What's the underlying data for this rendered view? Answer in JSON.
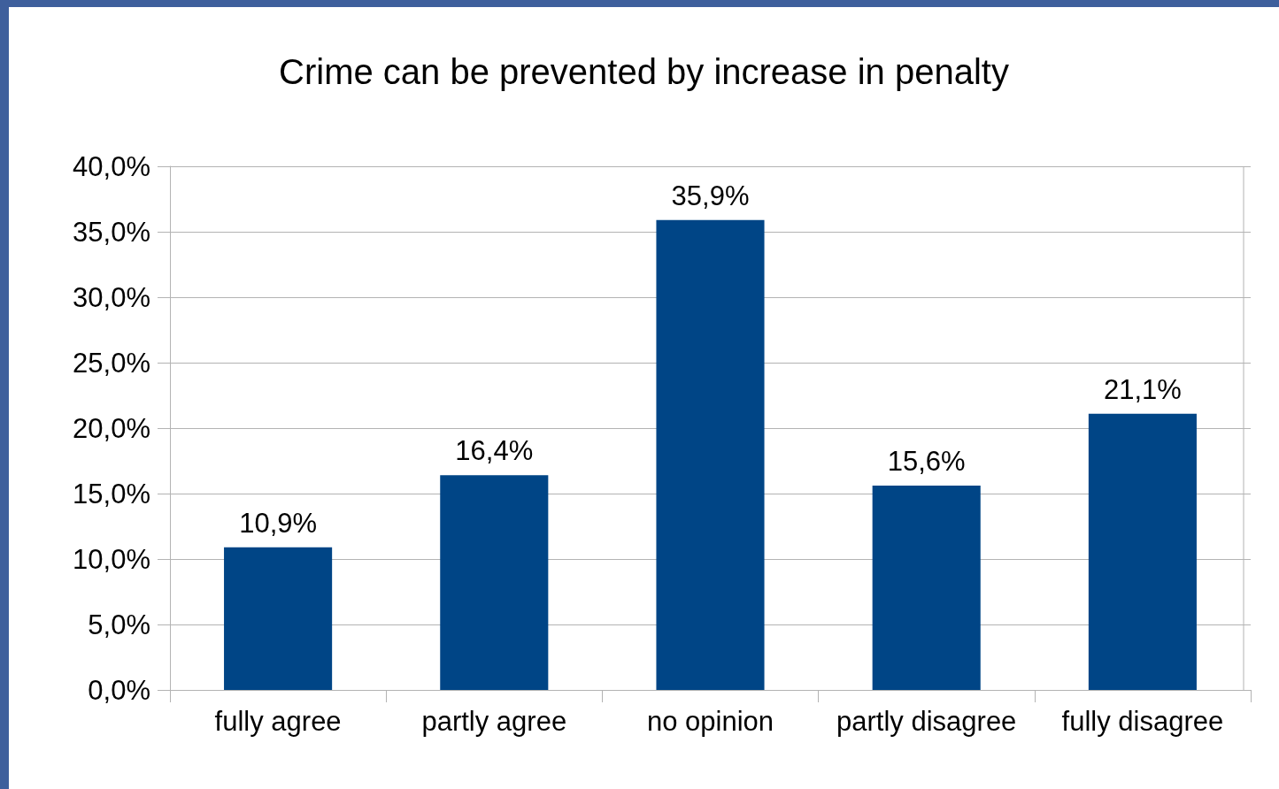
{
  "chart_data": {
    "type": "bar",
    "title": "Crime can be prevented by increase in penalty",
    "categories": [
      "fully agree",
      "partly agree",
      "no opinion",
      "partly disagree",
      "fully disagree"
    ],
    "values": [
      10.9,
      16.4,
      35.9,
      15.6,
      21.1
    ],
    "value_labels": [
      "10,9%",
      "16,4%",
      "35,9%",
      "15,6%",
      "21,1%"
    ],
    "color": "#004586",
    "ylim": [
      0,
      40
    ],
    "yticks": [
      {
        "value": 0,
        "label": "0,0%"
      },
      {
        "value": 5,
        "label": "5,0%"
      },
      {
        "value": 10,
        "label": "10,0%"
      },
      {
        "value": 15,
        "label": "15,0%"
      },
      {
        "value": 20,
        "label": "20,0%"
      },
      {
        "value": 25,
        "label": "25,0%"
      },
      {
        "value": 30,
        "label": "30,0%"
      },
      {
        "value": 35,
        "label": "35,0%"
      },
      {
        "value": 40,
        "label": "40,0%"
      }
    ],
    "grid": "y"
  }
}
